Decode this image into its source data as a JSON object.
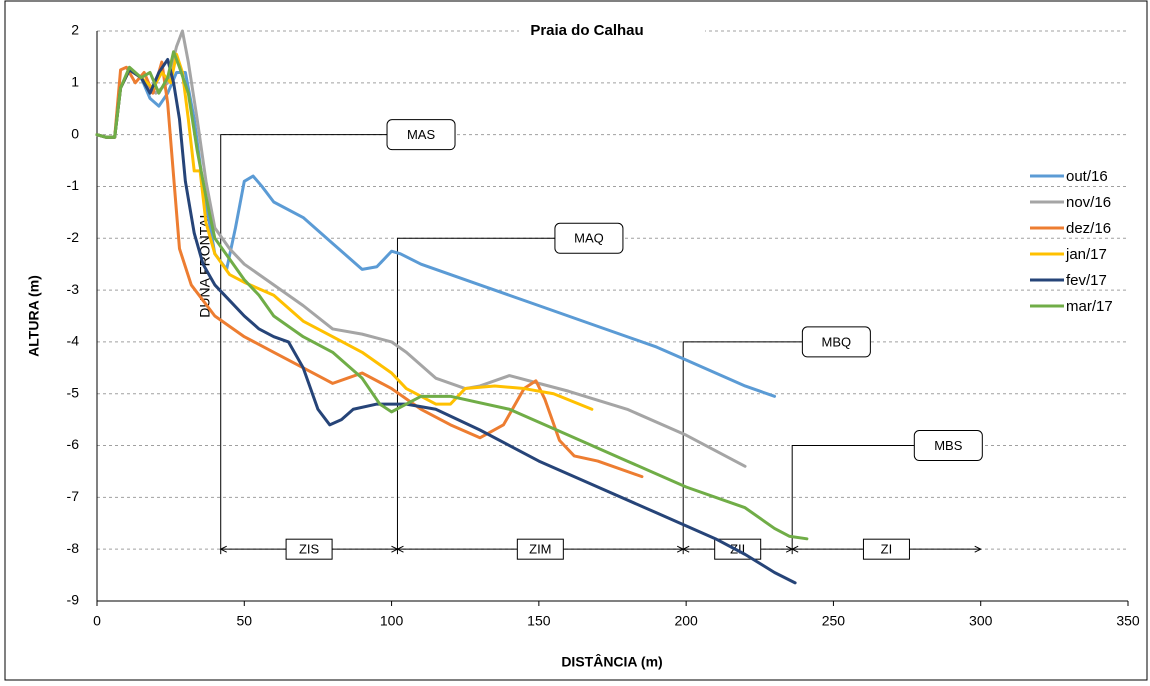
{
  "chart_data": {
    "type": "line",
    "title": "Praia do Calhau",
    "x_label": "DISTÂNCIA (m)",
    "y_label": "ALTURA (m)",
    "xlim": [
      0,
      350
    ],
    "xticks": [
      0,
      50,
      100,
      150,
      200,
      250,
      300,
      350
    ],
    "ylim": [
      -9,
      2
    ],
    "yticks": [
      -9,
      -8,
      -7,
      -6,
      -5,
      -4,
      -3,
      -2,
      -1,
      0,
      1,
      2
    ],
    "grid": true,
    "legend": "right",
    "series": [
      {
        "name": "out/16",
        "color": "#5b9bd5",
        "x": [
          0,
          3,
          6,
          8,
          11,
          15,
          18,
          21,
          24,
          27,
          30,
          33,
          36,
          40,
          44,
          47,
          50,
          53,
          56,
          60,
          70,
          80,
          90,
          95,
          100,
          103,
          110,
          130,
          150,
          170,
          190,
          200,
          210,
          220,
          230
        ],
        "values": [
          0,
          -0.05,
          -0.05,
          0.9,
          1.25,
          1.1,
          0.7,
          0.55,
          0.8,
          1.2,
          1.2,
          0.3,
          -1.0,
          -2.3,
          -2.6,
          -1.8,
          -0.9,
          -0.8,
          -1.0,
          -1.3,
          -1.6,
          -2.1,
          -2.6,
          -2.55,
          -2.25,
          -2.3,
          -2.5,
          -2.9,
          -3.3,
          -3.7,
          -4.1,
          -4.35,
          -4.6,
          -4.85,
          -5.05
        ]
      },
      {
        "name": "nov/16",
        "color": "#a5a5a5",
        "x": [
          0,
          3,
          6,
          8,
          11,
          15,
          20,
          24,
          27,
          29,
          31,
          34,
          37,
          40,
          45,
          50,
          60,
          70,
          80,
          90,
          100,
          105,
          115,
          125,
          130,
          140,
          150,
          160,
          180,
          200,
          220
        ],
        "values": [
          0,
          -0.05,
          -0.05,
          0.9,
          1.25,
          1.1,
          0.8,
          1.0,
          1.7,
          2.0,
          1.4,
          0.3,
          -0.9,
          -1.8,
          -2.2,
          -2.5,
          -2.9,
          -3.3,
          -3.75,
          -3.85,
          -4.0,
          -4.2,
          -4.7,
          -4.9,
          -4.85,
          -4.65,
          -4.8,
          -4.95,
          -5.3,
          -5.8,
          -6.4
        ]
      },
      {
        "name": "dez/16",
        "color": "#ed7d31",
        "x": [
          0,
          3,
          6,
          8,
          10,
          13,
          16,
          19,
          22,
          24,
          26,
          28,
          32,
          40,
          50,
          60,
          70,
          80,
          85,
          90,
          100,
          110,
          120,
          130,
          138,
          145,
          149,
          152,
          157,
          162,
          170,
          185
        ],
        "values": [
          0,
          -0.05,
          -0.05,
          1.25,
          1.3,
          1.0,
          1.2,
          0.8,
          1.4,
          0.6,
          -0.8,
          -2.2,
          -2.9,
          -3.5,
          -3.9,
          -4.2,
          -4.5,
          -4.8,
          -4.7,
          -4.6,
          -4.9,
          -5.3,
          -5.6,
          -5.85,
          -5.6,
          -4.9,
          -4.75,
          -5.1,
          -5.9,
          -6.2,
          -6.3,
          -6.6
        ]
      },
      {
        "name": "jan/17",
        "color": "#ffc000",
        "x": [
          0,
          3,
          6,
          8,
          11,
          15,
          19,
          22,
          25,
          27,
          29,
          31,
          33,
          35,
          37,
          40,
          45,
          50,
          60,
          70,
          80,
          90,
          100,
          105,
          110,
          115,
          120,
          125,
          135,
          145,
          155,
          168
        ],
        "values": [
          0,
          -0.05,
          -0.05,
          0.9,
          1.25,
          1.1,
          0.9,
          1.2,
          1.0,
          1.55,
          1.2,
          0.3,
          -0.7,
          -0.7,
          -1.7,
          -2.3,
          -2.7,
          -2.85,
          -3.1,
          -3.6,
          -3.9,
          -4.2,
          -4.6,
          -4.9,
          -5.05,
          -5.2,
          -5.2,
          -4.9,
          -4.85,
          -4.9,
          -5.0,
          -5.3
        ]
      },
      {
        "name": "fev/17",
        "color": "#264478",
        "x": [
          0,
          3,
          6,
          8,
          11,
          15,
          18,
          21,
          24,
          26,
          28,
          30,
          33,
          36,
          40,
          45,
          50,
          55,
          60,
          65,
          70,
          75,
          79,
          83,
          87,
          95,
          105,
          115,
          130,
          150,
          170,
          190,
          210,
          220,
          230,
          237
        ],
        "values": [
          0,
          -0.05,
          -0.05,
          0.9,
          1.25,
          1.1,
          0.8,
          1.2,
          1.45,
          1.0,
          0.3,
          -0.9,
          -1.9,
          -2.5,
          -2.9,
          -3.2,
          -3.5,
          -3.75,
          -3.9,
          -4.0,
          -4.5,
          -5.3,
          -5.6,
          -5.5,
          -5.3,
          -5.2,
          -5.2,
          -5.3,
          -5.7,
          -6.3,
          -6.8,
          -7.3,
          -7.8,
          -8.1,
          -8.45,
          -8.65
        ]
      },
      {
        "name": "mar/17",
        "color": "#70ad47",
        "x": [
          0,
          3,
          6,
          8,
          11,
          15,
          18,
          21,
          24,
          26,
          28,
          31,
          34,
          37,
          40,
          45,
          50,
          55,
          60,
          70,
          80,
          90,
          96,
          100,
          105,
          110,
          120,
          140,
          160,
          180,
          200,
          220,
          230,
          235,
          241
        ],
        "values": [
          0,
          -0.05,
          -0.05,
          0.9,
          1.3,
          1.1,
          1.2,
          0.8,
          1.1,
          1.6,
          1.3,
          0.8,
          -0.3,
          -1.2,
          -2.0,
          -2.4,
          -2.8,
          -3.1,
          -3.5,
          -3.9,
          -4.2,
          -4.7,
          -5.2,
          -5.35,
          -5.2,
          -5.05,
          -5.05,
          -5.3,
          -5.8,
          -6.3,
          -6.8,
          -7.2,
          -7.6,
          -7.75,
          -7.8
        ]
      }
    ],
    "levels": [
      {
        "label": "MAS",
        "x": 42,
        "y": 0,
        "label_x": 110
      },
      {
        "label": "MAQ",
        "x": 102,
        "y": -2,
        "label_x": 167
      },
      {
        "label": "MBQ",
        "x": 199,
        "y": -4,
        "label_x": 251
      },
      {
        "label": "MBS",
        "x": 236,
        "y": -6,
        "label_x": 289
      }
    ],
    "zone_y": -8,
    "zones": [
      {
        "label": "ZIS",
        "from": 42,
        "to": 102
      },
      {
        "label": "ZIM",
        "from": 102,
        "to": 199
      },
      {
        "label": "ZII",
        "from": 199,
        "to": 236
      },
      {
        "label": "ZI",
        "from": 236,
        "to": 300
      }
    ],
    "annotations": [
      {
        "text": "DUNA FRONTAL",
        "x": 37,
        "y": -2.5
      }
    ]
  }
}
